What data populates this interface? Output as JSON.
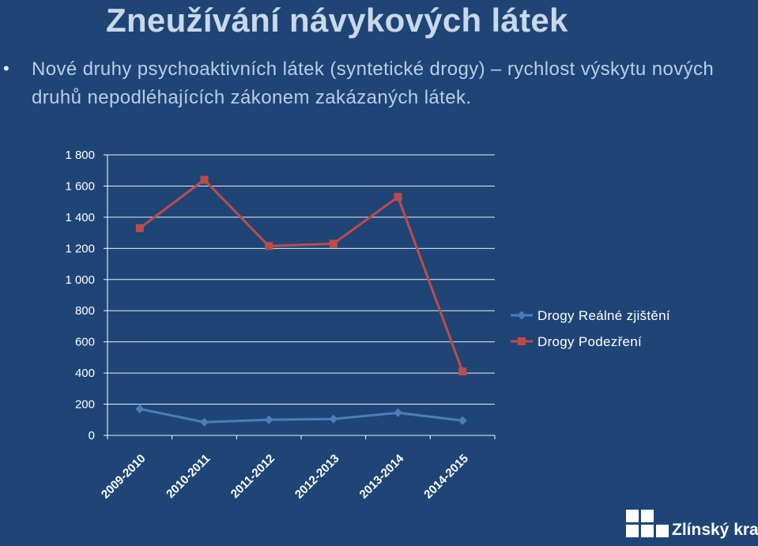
{
  "slide": {
    "title": "Zneužívání návykových látek",
    "bullet": "Nové druhy psychoaktivních látek (syntetické drogy) – rychlost výskytu nových druhů nepodléhajících zákonem zakázaných látek."
  },
  "logo": {
    "text": "Zlínský kraj"
  },
  "chart_data": {
    "type": "line",
    "title": "",
    "xlabel": "",
    "ylabel": "",
    "categories": [
      "2009-2010",
      "2010-2011",
      "2011-2012",
      "2012-2013",
      "2013-2014",
      "2014-2015"
    ],
    "ylim": [
      0,
      1800
    ],
    "ytick_values": [
      0,
      200,
      400,
      600,
      800,
      1000,
      1200,
      1400,
      1600,
      1800
    ],
    "ytick_labels": [
      "0",
      "200",
      "400",
      "600",
      "800",
      "1 000",
      "1 200",
      "1 400",
      "1 600",
      "1 800"
    ],
    "grid": true,
    "legend_position": "right",
    "series": [
      {
        "name": "Drogy Reálné zjištění",
        "marker": "diamond",
        "color": "#4a7ebb",
        "values": [
          170,
          85,
          100,
          105,
          145,
          95
        ]
      },
      {
        "name": "Drogy Podezření",
        "marker": "square",
        "color": "#be4b48",
        "values": [
          1330,
          1640,
          1215,
          1230,
          1530,
          410
        ]
      }
    ]
  }
}
